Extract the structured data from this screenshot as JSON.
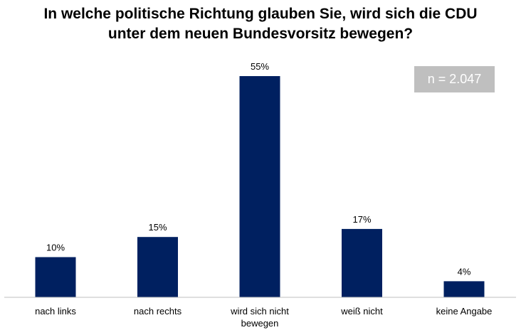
{
  "chart_data": {
    "type": "bar",
    "title_lines": [
      "In welche politische Richtung glauben Sie, wird sich die CDU",
      "unter dem neuen Bundesvorsitz bewegen?"
    ],
    "categories": [
      "nach links",
      "nach rechts",
      "wird sich nicht bewegen",
      "weiß nicht",
      "keine Angabe"
    ],
    "category_label_lines": [
      [
        "nach links"
      ],
      [
        "nach rechts"
      ],
      [
        "wird sich nicht",
        "bewegen"
      ],
      [
        "weiß nicht"
      ],
      [
        "keine Angabe"
      ]
    ],
    "values": [
      10,
      15,
      55,
      17,
      4
    ],
    "value_labels": [
      "10%",
      "15%",
      "55%",
      "17%",
      "4%"
    ],
    "unit": "%",
    "ylim": [
      0,
      55
    ],
    "grid": false,
    "bar_color": "#002060",
    "annotation": "n = 2.047"
  }
}
